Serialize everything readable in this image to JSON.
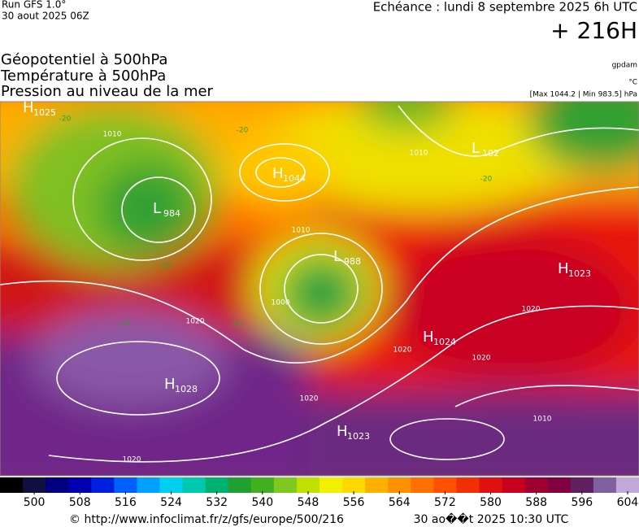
{
  "header": {
    "run": "Run GFS 1.0°",
    "date": "30 aout 2025 06Z",
    "echeance": "Echéance : lundi 8 septembre 2025 6h UTC",
    "lead": "+ 216H",
    "titles": [
      "Géopotentiel à 500hPa",
      "Température à 500hPa",
      "Pression au niveau de la mer"
    ],
    "units": [
      "gpdam",
      "°C",
      "[Max 1044.2 | Min 983.5] hPa"
    ]
  },
  "centers": [
    {
      "letter": "H",
      "value": "1025"
    },
    {
      "letter": "L",
      "value": "984"
    },
    {
      "letter": "H",
      "value": "1044"
    },
    {
      "letter": "L",
      "value": "988"
    },
    {
      "letter": "L",
      "value": "102"
    },
    {
      "letter": "H",
      "value": "1023"
    },
    {
      "letter": "H",
      "value": "1024"
    },
    {
      "letter": "H",
      "value": "1028"
    },
    {
      "letter": "H",
      "value": "1023"
    }
  ],
  "isobar_labels": [
    "1010",
    "1010",
    "1000",
    "1020",
    "1020",
    "1020",
    "1020",
    "1010",
    "1020",
    "1020",
    "1010"
  ],
  "temperature_labels": [
    "-20",
    "-20",
    "-20",
    "-20",
    "-10",
    "-10"
  ],
  "colorbar": {
    "range": [
      494,
      606
    ],
    "ticks": [
      500,
      508,
      516,
      524,
      532,
      540,
      548,
      556,
      564,
      572,
      580,
      588,
      596,
      604
    ],
    "colors": [
      "#000000",
      "#101040",
      "#000080",
      "#0000b0",
      "#0020e0",
      "#0060ff",
      "#00a0ff",
      "#00d0f0",
      "#00c8b0",
      "#00b070",
      "#20a030",
      "#40b020",
      "#80c820",
      "#c0e000",
      "#f0f000",
      "#ffd800",
      "#ffb000",
      "#ff9000",
      "#ff7000",
      "#ff5000",
      "#f03000",
      "#e01010",
      "#c80020",
      "#a00030",
      "#800040",
      "#602060",
      "#8060a0",
      "#c0a8d8"
    ]
  },
  "footer": {
    "source": "© http://www.infoclimat.fr/z/gfs/europe/500/216",
    "stamp": "30 ao��t 2025 10:30 UTC"
  }
}
